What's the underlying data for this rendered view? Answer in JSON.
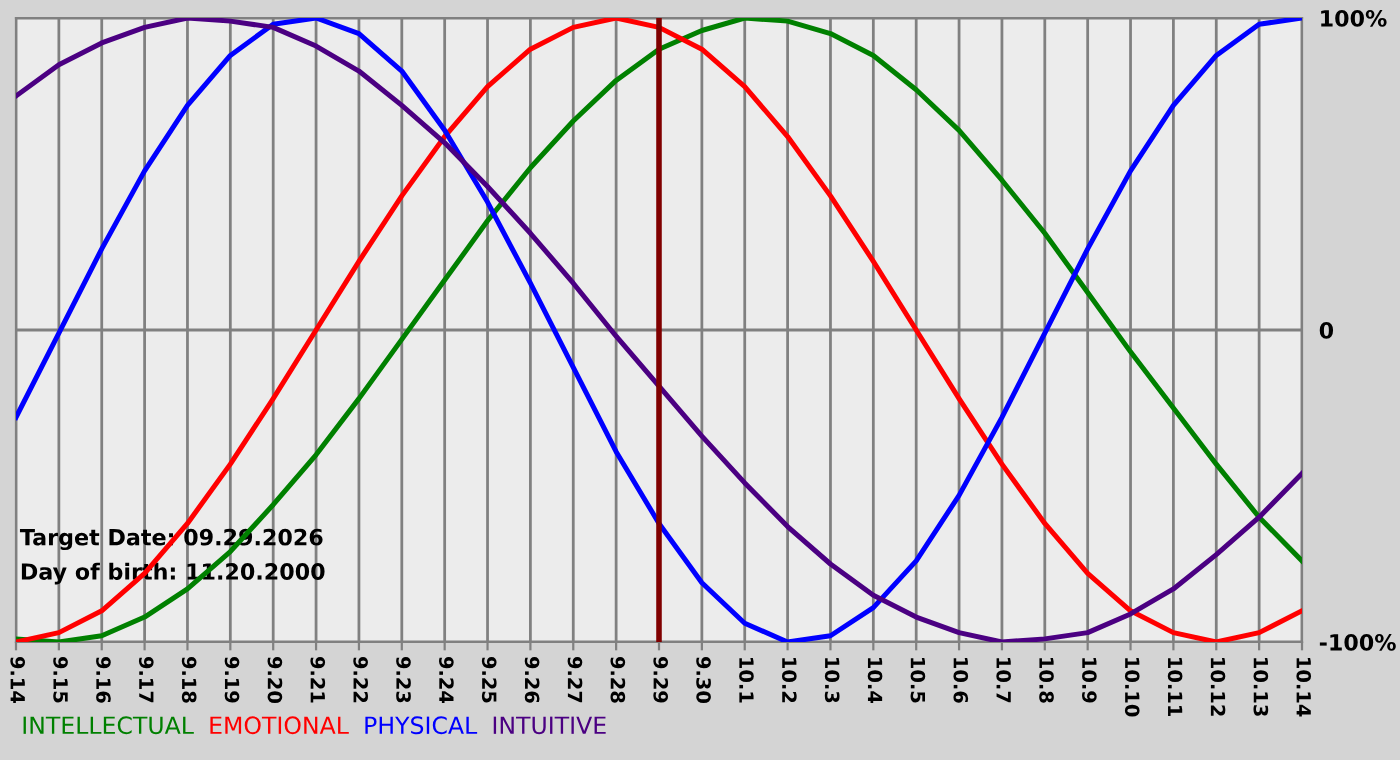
{
  "chart_data": {
    "type": "line",
    "categories": [
      "9.14",
      "9.15",
      "9.16",
      "9.17",
      "9.18",
      "9.19",
      "9.20",
      "9.21",
      "9.22",
      "9.23",
      "9.24",
      "9.25",
      "9.26",
      "9.27",
      "9.28",
      "9.29",
      "9.30",
      "10.1",
      "10.2",
      "10.3",
      "10.4",
      "10.5",
      "10.6",
      "10.7",
      "10.8",
      "10.9",
      "10.10",
      "10.11",
      "10.12",
      "10.13",
      "10.14"
    ],
    "series": [
      {
        "name": "INTELLECTUAL",
        "color": "#008000",
        "values": [
          -99,
          -100,
          -98,
          -92,
          -83,
          -71,
          -56,
          -40,
          -22,
          -3,
          16,
          35,
          52,
          67,
          80,
          90,
          96,
          100,
          99,
          95,
          88,
          77,
          64,
          48,
          31,
          12,
          -7,
          -25,
          -43,
          -60,
          -74
        ]
      },
      {
        "name": "EMOTIONAL",
        "color": "#ff0000",
        "values": [
          -100,
          -97,
          -90,
          -78,
          -62,
          -43,
          -22,
          0,
          22,
          43,
          62,
          78,
          90,
          97,
          100,
          97,
          90,
          78,
          62,
          43,
          22,
          0,
          -22,
          -43,
          -62,
          -78,
          -90,
          -97,
          -100,
          -97,
          -90
        ]
      },
      {
        "name": "PHYSICAL",
        "color": "#0000ff",
        "values": [
          -28,
          -1,
          26,
          51,
          72,
          88,
          98,
          100,
          95,
          83,
          64,
          41,
          15,
          -12,
          -39,
          -62,
          -81,
          -94,
          -100,
          -98,
          -89,
          -74,
          -53,
          -28,
          -1,
          26,
          51,
          72,
          88,
          98,
          100
        ]
      },
      {
        "name": "INTUITIVE",
        "color": "#4b0082",
        "values": [
          75,
          85,
          92,
          97,
          100,
          99,
          97,
          91,
          83,
          72,
          60,
          46,
          31,
          15,
          -2,
          -18,
          -34,
          -49,
          -63,
          -75,
          -85,
          -92,
          -97,
          -100,
          -99,
          -97,
          -91,
          -83,
          -72,
          -60,
          -46
        ]
      }
    ],
    "ylim": [
      -100,
      100
    ],
    "yticks": [
      {
        "value": 100,
        "label": "100%"
      },
      0,
      {
        "value": -100,
        "label": "-100%"
      }
    ],
    "grid": true,
    "ref_lines": [
      {
        "axis": "x",
        "value": "9.29",
        "color": "#800000"
      }
    ],
    "annotations": [
      "Target Date: 09.29.2026",
      "Day of birth: 11.20.2000"
    ],
    "legend": "bottom",
    "marker": "none",
    "line_style": "solid"
  }
}
